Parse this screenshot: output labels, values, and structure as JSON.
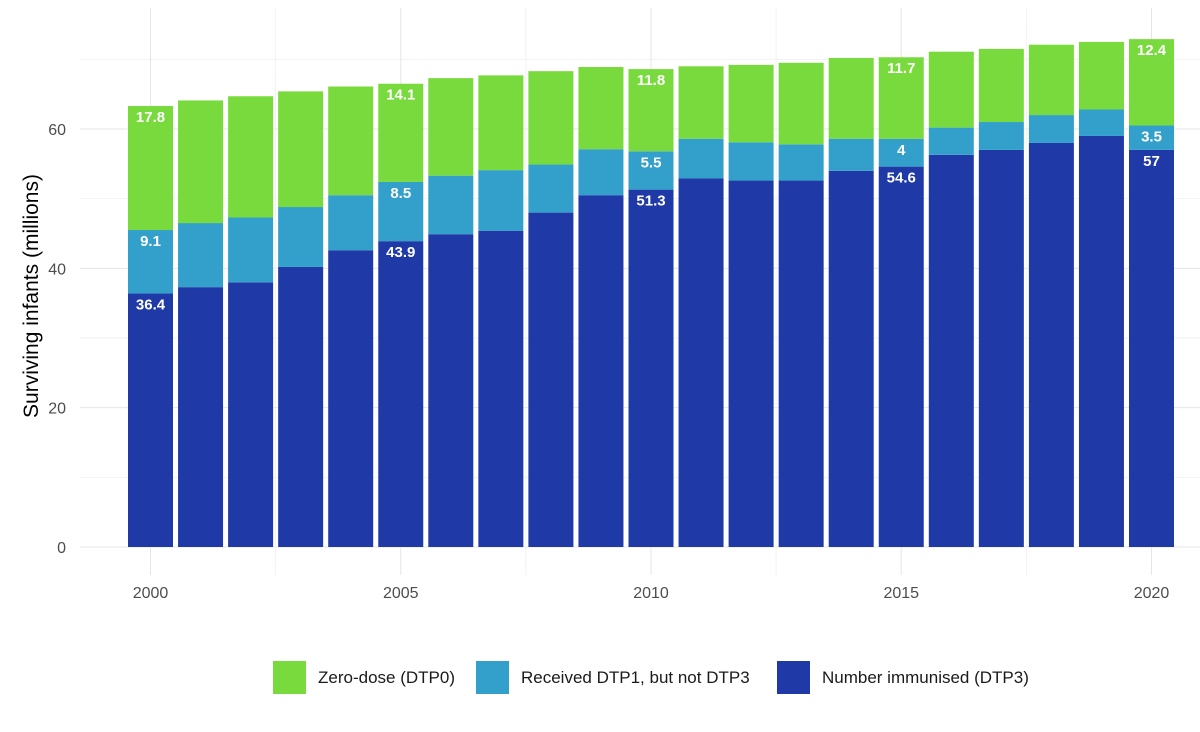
{
  "chart_data": {
    "type": "bar",
    "stacked": true,
    "title": "",
    "xlabel": "",
    "ylabel": "Surviving infants (millions)",
    "x": [
      2000,
      2001,
      2002,
      2003,
      2004,
      2005,
      2006,
      2007,
      2008,
      2009,
      2010,
      2011,
      2012,
      2013,
      2014,
      2015,
      2016,
      2017,
      2018,
      2019,
      2020
    ],
    "xticks": [
      2000,
      2005,
      2010,
      2015,
      2020
    ],
    "yticks": [
      0,
      20,
      40,
      60
    ],
    "ylim": [
      0,
      75
    ],
    "grid": true,
    "legend_position": "bottom",
    "series": [
      {
        "name": "Number immunised (DTP3)",
        "color": "#1f3aa6",
        "values": [
          36.4,
          37.3,
          38.0,
          40.2,
          42.6,
          43.9,
          44.9,
          45.4,
          48.0,
          50.5,
          51.3,
          52.9,
          52.6,
          52.6,
          54.0,
          54.6,
          56.3,
          57.0,
          58.0,
          59.0,
          57.0
        ]
      },
      {
        "name": "Received DTP1, but not DTP3",
        "color": "#33a0cc",
        "values": [
          9.1,
          9.2,
          9.3,
          8.6,
          7.9,
          8.5,
          8.4,
          8.7,
          6.9,
          6.6,
          5.5,
          5.7,
          5.5,
          5.2,
          4.6,
          4.0,
          3.9,
          4.0,
          4.0,
          3.8,
          3.5
        ]
      },
      {
        "name": "Zero-dose (DTP0)",
        "color": "#79da3d",
        "values": [
          17.8,
          17.6,
          17.4,
          16.6,
          15.6,
          14.1,
          14.0,
          13.6,
          13.4,
          11.8,
          11.8,
          10.4,
          11.1,
          11.7,
          11.6,
          11.7,
          10.9,
          10.5,
          10.1,
          9.7,
          12.4
        ]
      }
    ],
    "data_labels": [
      {
        "x": 2000,
        "series": 0,
        "text": "36.4"
      },
      {
        "x": 2000,
        "series": 1,
        "text": "9.1"
      },
      {
        "x": 2000,
        "series": 2,
        "text": "17.8"
      },
      {
        "x": 2005,
        "series": 0,
        "text": "43.9"
      },
      {
        "x": 2005,
        "series": 1,
        "text": "8.5"
      },
      {
        "x": 2005,
        "series": 2,
        "text": "14.1"
      },
      {
        "x": 2010,
        "series": 0,
        "text": "51.3"
      },
      {
        "x": 2010,
        "series": 1,
        "text": "5.5"
      },
      {
        "x": 2010,
        "series": 2,
        "text": "11.8"
      },
      {
        "x": 2015,
        "series": 0,
        "text": "54.6"
      },
      {
        "x": 2015,
        "series": 1,
        "text": "4"
      },
      {
        "x": 2015,
        "series": 2,
        "text": "11.7"
      },
      {
        "x": 2020,
        "series": 0,
        "text": "57"
      },
      {
        "x": 2020,
        "series": 1,
        "text": "3.5"
      },
      {
        "x": 2020,
        "series": 2,
        "text": "12.4"
      }
    ],
    "legend_order": [
      2,
      1,
      0
    ]
  }
}
